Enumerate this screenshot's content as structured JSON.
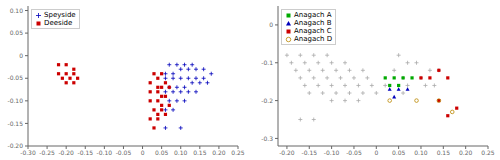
{
  "chart_data": [
    {
      "type": "scatter",
      "grid": false,
      "legend": "upper left",
      "xlim": [
        -0.3,
        0.25
      ],
      "ylim": [
        -0.2,
        0.11
      ],
      "xticks": [
        {
          "value": -0.3,
          "label": "-0.30"
        },
        -0.25,
        {
          "value": -0.2,
          "label": "-0.20"
        },
        -0.15,
        {
          "value": -0.1,
          "label": "-0.10"
        },
        -0.05,
        0,
        0.05,
        {
          "value": 0.1,
          "label": "0.10"
        },
        0.15,
        {
          "value": 0.2,
          "label": "0.20"
        },
        0.25
      ],
      "yticks": [
        {
          "value": -0.2,
          "label": "-0.20"
        },
        -0.15,
        {
          "value": -0.1,
          "label": "-0.10"
        },
        -0.05,
        0,
        0.05,
        {
          "value": 0.1,
          "label": "0.10"
        }
      ],
      "series": [
        {
          "name": "Speyside",
          "color": "#0000bb",
          "marker": "plus",
          "values": [
            [
              0.07,
              -0.02
            ],
            [
              0.09,
              -0.02
            ],
            [
              0.11,
              -0.02
            ],
            [
              0.13,
              -0.02
            ],
            [
              0.06,
              -0.04
            ],
            [
              0.08,
              -0.04
            ],
            [
              0.1,
              -0.03
            ],
            [
              0.12,
              -0.03
            ],
            [
              0.14,
              -0.03
            ],
            [
              0.16,
              -0.03
            ],
            [
              0.06,
              -0.05
            ],
            [
              0.08,
              -0.05
            ],
            [
              0.1,
              -0.05
            ],
            [
              0.12,
              -0.05
            ],
            [
              0.14,
              -0.05
            ],
            [
              0.16,
              -0.05
            ],
            [
              0.18,
              -0.04
            ],
            [
              0.07,
              -0.07
            ],
            [
              0.09,
              -0.07
            ],
            [
              0.11,
              -0.07
            ],
            [
              0.13,
              -0.06
            ],
            [
              0.15,
              -0.06
            ],
            [
              0.17,
              -0.06
            ],
            [
              0.06,
              -0.08
            ],
            [
              0.08,
              -0.08
            ],
            [
              0.1,
              -0.08
            ],
            [
              0.12,
              -0.08
            ],
            [
              0.14,
              -0.08
            ],
            [
              0.07,
              -0.1
            ],
            [
              0.09,
              -0.1
            ],
            [
              0.11,
              -0.1
            ],
            [
              0.06,
              -0.12
            ],
            [
              0.08,
              -0.12
            ],
            [
              0.06,
              -0.16
            ],
            [
              0.1,
              -0.16
            ]
          ]
        },
        {
          "name": "Deeside",
          "color": "#cc0000",
          "marker": "square",
          "values": [
            [
              -0.22,
              -0.02
            ],
            [
              -0.2,
              -0.02
            ],
            [
              -0.18,
              -0.03
            ],
            [
              -0.22,
              -0.04
            ],
            [
              -0.2,
              -0.04
            ],
            [
              -0.18,
              -0.04
            ],
            [
              -0.21,
              -0.05
            ],
            [
              -0.19,
              -0.05
            ],
            [
              -0.17,
              -0.05
            ],
            [
              -0.2,
              -0.06
            ],
            [
              -0.18,
              -0.06
            ],
            [
              0.02,
              -0.06
            ],
            [
              0.04,
              -0.05
            ],
            [
              0.02,
              -0.08
            ],
            [
              0.04,
              -0.08
            ],
            [
              0.02,
              -0.1
            ],
            [
              0.04,
              -0.1
            ],
            [
              0.05,
              -0.09
            ],
            [
              0.03,
              -0.12
            ],
            [
              0.05,
              -0.12
            ],
            [
              0.02,
              -0.14
            ],
            [
              0.04,
              -0.14
            ],
            [
              0.03,
              -0.16
            ],
            [
              0.04,
              -0.07
            ],
            [
              0.05,
              -0.07
            ],
            [
              0.05,
              -0.11
            ],
            [
              0.06,
              -0.09
            ],
            [
              0.07,
              -0.11
            ],
            [
              0.03,
              -0.04
            ],
            [
              0.05,
              -0.04
            ],
            [
              0.06,
              -0.06
            ],
            [
              0.07,
              -0.07
            ],
            [
              0.04,
              -0.13
            ],
            [
              0.06,
              -0.13
            ]
          ]
        }
      ]
    },
    {
      "type": "scatter",
      "grid": false,
      "legend": "upper left",
      "xlim": [
        -0.22,
        0.25
      ],
      "ylim": [
        -0.32,
        0.05
      ],
      "xticks": [
        {
          "value": -0.2,
          "label": "-0.20"
        },
        -0.15,
        {
          "value": -0.1,
          "label": "-0.10"
        },
        -0.05,
        0,
        0.05,
        {
          "value": 0.1,
          "label": "0.10"
        },
        0.15,
        {
          "value": 0.2,
          "label": "0.20"
        },
        0.25
      ],
      "yticks": [
        -0.3,
        -0.2,
        -0.1,
        0
      ],
      "series": [
        {
          "color": "#aaaaaa",
          "marker": "plus",
          "values": [
            [
              -0.2,
              -0.08
            ],
            [
              -0.17,
              -0.08
            ],
            [
              -0.14,
              -0.08
            ],
            [
              -0.11,
              -0.08
            ],
            [
              -0.19,
              -0.1
            ],
            [
              -0.16,
              -0.1
            ],
            [
              -0.13,
              -0.1
            ],
            [
              -0.1,
              -0.1
            ],
            [
              -0.07,
              -0.1
            ],
            [
              -0.18,
              -0.12
            ],
            [
              -0.15,
              -0.12
            ],
            [
              -0.12,
              -0.12
            ],
            [
              -0.09,
              -0.12
            ],
            [
              -0.06,
              -0.12
            ],
            [
              -0.03,
              -0.12
            ],
            [
              -0.17,
              -0.14
            ],
            [
              -0.14,
              -0.14
            ],
            [
              -0.11,
              -0.14
            ],
            [
              -0.08,
              -0.14
            ],
            [
              -0.05,
              -0.14
            ],
            [
              -0.02,
              -0.14
            ],
            [
              -0.16,
              -0.16
            ],
            [
              -0.13,
              -0.16
            ],
            [
              -0.1,
              -0.16
            ],
            [
              -0.07,
              -0.16
            ],
            [
              -0.04,
              -0.16
            ],
            [
              -0.01,
              -0.16
            ],
            [
              0.02,
              -0.16
            ],
            [
              -0.15,
              -0.18
            ],
            [
              -0.12,
              -0.18
            ],
            [
              -0.09,
              -0.18
            ],
            [
              -0.06,
              -0.18
            ],
            [
              -0.03,
              -0.18
            ],
            [
              0.0,
              -0.18
            ],
            [
              -0.1,
              -0.2
            ],
            [
              -0.07,
              -0.2
            ],
            [
              -0.04,
              -0.2
            ],
            [
              -0.17,
              -0.25
            ],
            [
              -0.14,
              -0.25
            ],
            [
              0.04,
              -0.12
            ],
            [
              0.06,
              -0.14
            ],
            [
              0.07,
              -0.16
            ],
            [
              0.05,
              -0.08
            ],
            [
              0.07,
              -0.1
            ],
            [
              0.09,
              -0.1
            ],
            [
              0.1,
              -0.14
            ],
            [
              0.12,
              -0.12
            ],
            [
              0.14,
              -0.12
            ],
            [
              0.11,
              -0.16
            ],
            [
              0.13,
              -0.16
            ],
            [
              0.06,
              -0.18
            ]
          ]
        },
        {
          "name": "Anagach A",
          "color": "#00aa00",
          "marker": "square",
          "values": [
            [
              0.02,
              -0.14
            ],
            [
              0.04,
              -0.14
            ],
            [
              0.06,
              -0.14
            ],
            [
              0.03,
              -0.16
            ],
            [
              0.05,
              -0.16
            ],
            [
              0.08,
              -0.14
            ]
          ]
        },
        {
          "name": "Anagach B",
          "color": "#0000bb",
          "marker": "triangle",
          "values": [
            [
              0.03,
              -0.17
            ],
            [
              0.05,
              -0.17
            ],
            [
              0.07,
              -0.17
            ],
            [
              0.04,
              -0.19
            ]
          ]
        },
        {
          "name": "Anagach C",
          "color": "#cc0000",
          "marker": "square",
          "values": [
            [
              0.1,
              -0.14
            ],
            [
              0.12,
              -0.14
            ],
            [
              0.14,
              -0.12
            ],
            [
              0.16,
              -0.14
            ],
            [
              0.14,
              -0.2
            ],
            [
              0.18,
              -0.22
            ],
            [
              0.16,
              -0.24
            ]
          ]
        },
        {
          "name": "Anagach D",
          "color": "#bb8800",
          "marker": "circle_open",
          "values": [
            [
              0.03,
              -0.2
            ],
            [
              0.09,
              -0.2
            ],
            [
              0.14,
              -0.2
            ],
            [
              0.17,
              -0.23
            ]
          ]
        }
      ]
    }
  ]
}
